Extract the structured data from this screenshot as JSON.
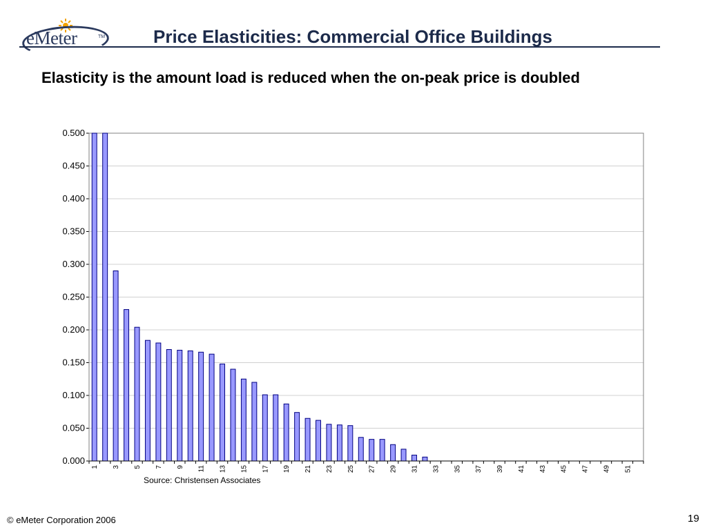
{
  "header": {
    "logo_text": "eMeter",
    "logo_tm": "TM",
    "title": "Price Elasticities: Commercial Office Buildings"
  },
  "subtitle": "Elasticity is the amount load is reduced when the on-peak price is doubled",
  "source": "Source: Christensen Associates",
  "footer": {
    "copyright": "© eMeter Corporation 2006",
    "page_number": "19"
  },
  "colors": {
    "bar_fill": "#9999ff",
    "bar_stroke": "#000080",
    "title": "#1c2a4a"
  },
  "chart_data": {
    "type": "bar",
    "categories": [
      "1",
      "2",
      "3",
      "4",
      "5",
      "6",
      "7",
      "8",
      "9",
      "10",
      "11",
      "12",
      "13",
      "14",
      "15",
      "16",
      "17",
      "18",
      "19",
      "20",
      "21",
      "22",
      "23",
      "24",
      "25",
      "26",
      "27",
      "28",
      "29",
      "30",
      "31",
      "32",
      "33",
      "34",
      "35",
      "36",
      "37",
      "38",
      "39",
      "40",
      "41",
      "42",
      "43",
      "44",
      "45",
      "46",
      "47",
      "48",
      "49",
      "50",
      "51",
      "52"
    ],
    "x_tick_labels": [
      "1",
      "3",
      "5",
      "7",
      "9",
      "11",
      "13",
      "15",
      "17",
      "19",
      "21",
      "23",
      "25",
      "27",
      "29",
      "31",
      "33",
      "35",
      "37",
      "39",
      "41",
      "43",
      "45",
      "47",
      "49",
      "51"
    ],
    "values": [
      0.5,
      0.5,
      0.29,
      0.231,
      0.204,
      0.184,
      0.18,
      0.17,
      0.169,
      0.168,
      0.166,
      0.163,
      0.148,
      0.14,
      0.125,
      0.12,
      0.101,
      0.101,
      0.087,
      0.074,
      0.065,
      0.062,
      0.056,
      0.055,
      0.054,
      0.036,
      0.033,
      0.033,
      0.025,
      0.018,
      0.009,
      0.006,
      0,
      0,
      0,
      0,
      0,
      0,
      0,
      0,
      0,
      0,
      0,
      0,
      0,
      0,
      0,
      0,
      0,
      0,
      0,
      0
    ],
    "ylim": [
      0,
      0.5
    ],
    "y_ticks": [
      "0.000",
      "0.050",
      "0.100",
      "0.150",
      "0.200",
      "0.250",
      "0.300",
      "0.350",
      "0.400",
      "0.450",
      "0.500"
    ],
    "grid": true,
    "legend": "none",
    "xlabel": "",
    "ylabel": ""
  }
}
